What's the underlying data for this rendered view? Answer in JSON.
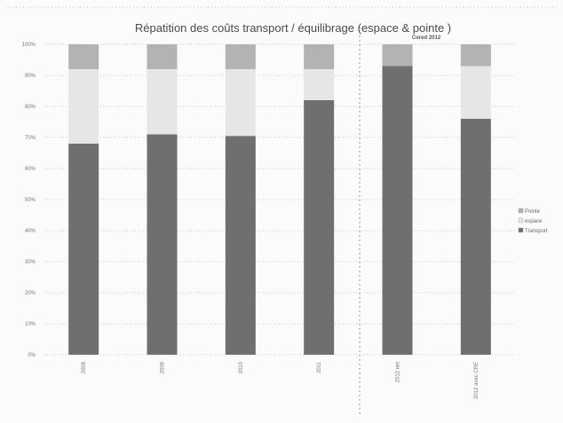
{
  "chart_data": {
    "type": "bar",
    "stacked": true,
    "title": "Répatition des coûts transport / équilibrage (espace & pointe )",
    "subtitle": "Cored 2012",
    "categories": [
      "2008",
      "2009",
      "2010",
      "2011",
      "2012 net",
      "2012 avec CRE"
    ],
    "y_ticks": [
      "0%",
      "10%",
      "20%",
      "30%",
      "40%",
      "50%",
      "60%",
      "70%",
      "80%",
      "90%",
      "100%"
    ],
    "ylim": [
      0,
      100
    ],
    "series": [
      {
        "name": "Transport",
        "color": "#6f6f6f",
        "values": [
          68,
          71,
          70.5,
          82,
          93,
          76
        ]
      },
      {
        "name": "Espace",
        "color": "#e6e6e6",
        "values": [
          24,
          21,
          21.5,
          10,
          0,
          17
        ]
      },
      {
        "name": "Pointe",
        "color": "#b3b3b3",
        "values": [
          8,
          8,
          8,
          8,
          7,
          7
        ]
      }
    ],
    "legend_order": [
      "Pointe",
      "Espace",
      "Transport"
    ],
    "legend_labels": [
      "Pointe",
      "espace",
      "Transport"
    ],
    "legend_position": "right",
    "grid": true
  }
}
